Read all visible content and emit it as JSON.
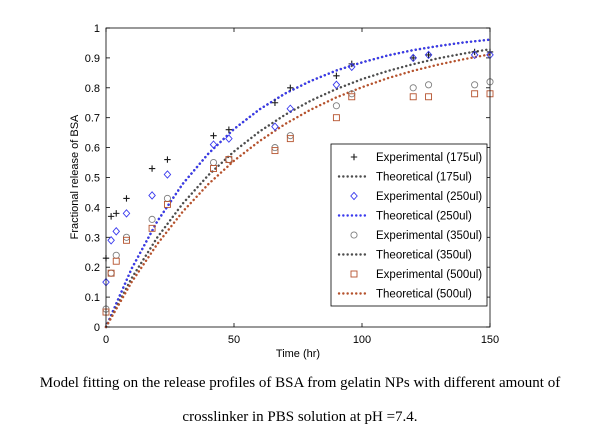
{
  "chart_data": {
    "type": "scatter",
    "xlabel": "Time (hr)",
    "ylabel": "Fractional release of BSA",
    "xlim": [
      0,
      150
    ],
    "ylim": [
      0,
      1
    ],
    "xticks": [
      0,
      50,
      100,
      150
    ],
    "yticks": [
      0,
      0.1,
      0.2,
      0.3,
      0.4,
      0.5,
      0.6,
      0.7,
      0.8,
      0.9,
      1
    ],
    "legend_position": "right",
    "grid": false,
    "series": [
      {
        "name": "Experimental (175ul)",
        "kind": "scatter",
        "marker": "plus",
        "color": "#1a1a1a",
        "x": [
          0,
          2,
          4,
          8,
          18,
          24,
          42,
          48,
          66,
          72,
          90,
          96,
          120,
          126,
          144,
          150
        ],
        "y": [
          0.23,
          0.37,
          0.38,
          0.43,
          0.53,
          0.56,
          0.64,
          0.66,
          0.75,
          0.8,
          0.84,
          0.88,
          0.9,
          0.91,
          0.92,
          0.92
        ]
      },
      {
        "name": "Theoretical (175ul)",
        "kind": "line",
        "color": "#4d4d4d",
        "x": [
          0,
          10,
          20,
          30,
          40,
          50,
          60,
          70,
          80,
          90,
          100,
          110,
          120,
          130,
          140,
          150
        ],
        "y": [
          0.0,
          0.195,
          0.353,
          0.479,
          0.58,
          0.662,
          0.728,
          0.781,
          0.823,
          0.858,
          0.885,
          0.908,
          0.926,
          0.94,
          0.952,
          0.961
        ]
      },
      {
        "name": "Experimental (250ul)",
        "kind": "scatter",
        "marker": "diamond",
        "color": "#3a3aee",
        "x": [
          0,
          2,
          4,
          8,
          18,
          24,
          42,
          48,
          66,
          72,
          90,
          96,
          120,
          126,
          144,
          150
        ],
        "y": [
          0.15,
          0.29,
          0.32,
          0.38,
          0.44,
          0.51,
          0.61,
          0.63,
          0.67,
          0.73,
          0.81,
          0.87,
          0.9,
          0.91,
          0.91,
          0.91
        ]
      },
      {
        "name": "Theoretical (250ul)",
        "kind": "line",
        "color": "#3a3aee",
        "x": [
          0,
          10,
          20,
          30,
          40,
          50,
          60,
          70,
          80,
          90,
          100,
          110,
          120,
          130,
          140,
          150
        ],
        "y": [
          0.0,
          0.195,
          0.353,
          0.479,
          0.58,
          0.662,
          0.728,
          0.781,
          0.823,
          0.858,
          0.885,
          0.908,
          0.926,
          0.94,
          0.952,
          0.961
        ]
      },
      {
        "name": "Experimental (350ul)",
        "kind": "scatter",
        "marker": "circle",
        "color": "#7f7f7f",
        "x": [
          0,
          2,
          4,
          8,
          18,
          24,
          42,
          48,
          66,
          72,
          90,
          96,
          120,
          126,
          144,
          150
        ],
        "y": [
          0.06,
          0.18,
          0.24,
          0.3,
          0.36,
          0.43,
          0.55,
          0.56,
          0.6,
          0.64,
          0.74,
          0.78,
          0.8,
          0.81,
          0.81,
          0.82
        ]
      },
      {
        "name": "Theoretical (350ul)",
        "kind": "line",
        "color": "#4d4d4d",
        "x": [
          0,
          10,
          20,
          30,
          40,
          50,
          60,
          70,
          80,
          90,
          100,
          110,
          120,
          130,
          140,
          150
        ],
        "y": [
          0.0,
          0.163,
          0.299,
          0.413,
          0.508,
          0.587,
          0.654,
          0.71,
          0.757,
          0.796,
          0.829,
          0.856,
          0.879,
          0.899,
          0.915,
          0.929
        ]
      },
      {
        "name": "Experimental (500ul)",
        "kind": "scatter",
        "marker": "square",
        "color": "#b5522d",
        "x": [
          0,
          2,
          4,
          8,
          18,
          24,
          42,
          48,
          66,
          72,
          90,
          96,
          120,
          126,
          144,
          150
        ],
        "y": [
          0.05,
          0.18,
          0.22,
          0.29,
          0.33,
          0.41,
          0.53,
          0.56,
          0.59,
          0.63,
          0.7,
          0.77,
          0.77,
          0.77,
          0.78,
          0.78
        ]
      },
      {
        "name": "Theoretical (500ul)",
        "kind": "line",
        "color": "#b5522d",
        "x": [
          0,
          10,
          20,
          30,
          40,
          50,
          60,
          70,
          80,
          90,
          100,
          110,
          120,
          130,
          140,
          150
        ],
        "y": [
          0.0,
          0.15,
          0.277,
          0.386,
          0.478,
          0.556,
          0.622,
          0.679,
          0.727,
          0.768,
          0.802,
          0.832,
          0.857,
          0.878,
          0.896,
          0.912
        ]
      }
    ]
  },
  "caption": {
    "line1": "Model fitting on the release profiles of BSA from gelatin NPs with different amount of",
    "line2": "crosslinker in PBS solution at pH =7.4."
  }
}
